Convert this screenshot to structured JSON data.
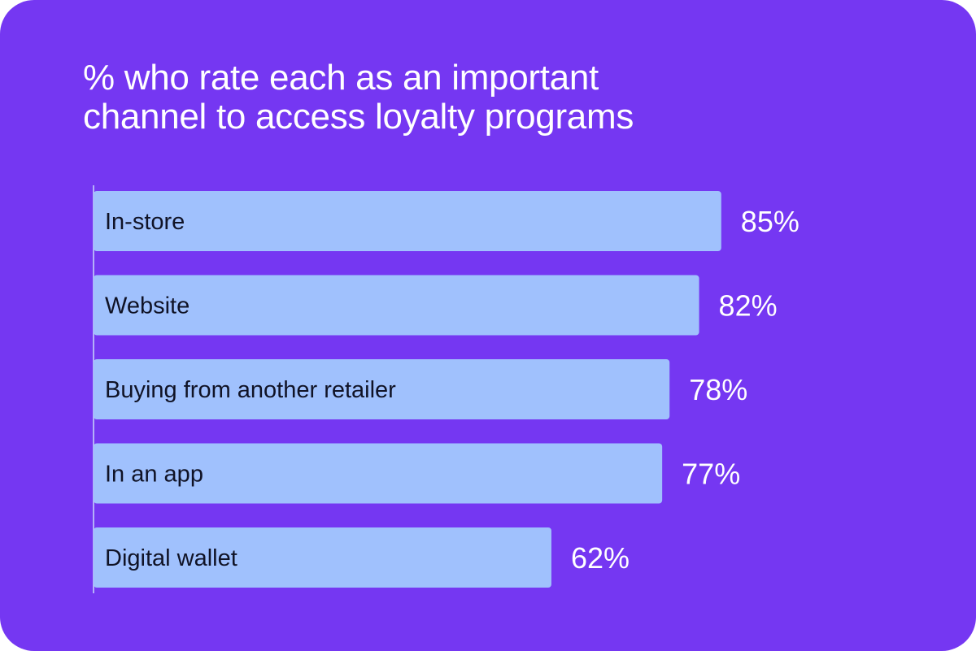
{
  "colors": {
    "background": "#7537f2",
    "bar": "#a0c1fd",
    "bar_text": "#101326",
    "value_text": "#ffffff",
    "axis": "#c9d8fb"
  },
  "chart_data": {
    "type": "bar",
    "orientation": "horizontal",
    "title": "% who rate each as an important\nchannel to access loyalty programs",
    "categories": [
      "In-store",
      "Website",
      "Buying from another retailer",
      "In an app",
      "Digital wallet"
    ],
    "values": [
      85,
      82,
      78,
      77,
      62
    ],
    "value_labels": [
      "85%",
      "82%",
      "78%",
      "77%",
      "62%"
    ],
    "xlim": [
      0,
      100
    ],
    "grid": false,
    "legend": "none"
  }
}
